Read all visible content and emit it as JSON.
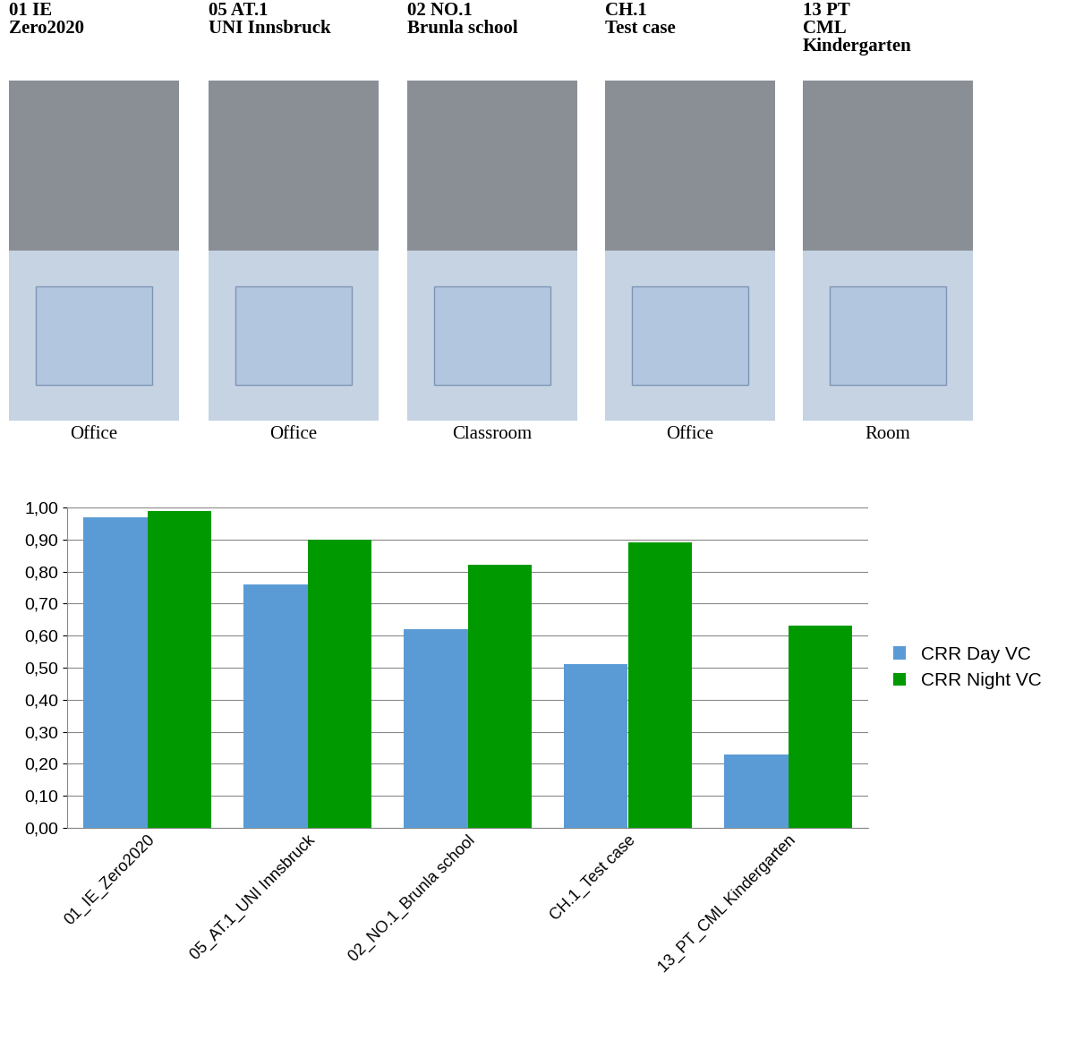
{
  "panels": [
    {
      "title_lines": [
        "01 IE",
        "Zero2020"
      ],
      "caption": "Office"
    },
    {
      "title_lines": [
        "05 AT.1",
        "UNI Innsbruck"
      ],
      "caption": "Office"
    },
    {
      "title_lines": [
        "02 NO.1",
        "Brunla school"
      ],
      "caption": "Classroom"
    },
    {
      "title_lines": [
        "CH.1",
        "Test case"
      ],
      "caption": "Office"
    },
    {
      "title_lines": [
        "13 PT",
        "CML",
        "Kindergarten"
      ],
      "caption": "Room"
    }
  ],
  "chart_data": {
    "type": "bar",
    "categories": [
      "01_IE_Zero2020",
      "05_AT.1_UNI Innsbruck",
      "02_NO.1_Brunla school",
      "CH.1_Test case",
      "13_PT_CML Kindergarten"
    ],
    "series": [
      {
        "name": "CRR Day VC",
        "color": "#5b9bd5",
        "values": [
          0.97,
          0.76,
          0.62,
          0.51,
          0.23
        ]
      },
      {
        "name": "CRR Night VC",
        "color": "#009a00",
        "values": [
          0.99,
          0.9,
          0.82,
          0.89,
          0.63
        ]
      }
    ],
    "ylim": [
      0,
      1
    ],
    "yticks": [
      {
        "value": 0,
        "label": "0,00"
      },
      {
        "value": 0.1,
        "label": "0,10"
      },
      {
        "value": 0.2,
        "label": "0,20"
      },
      {
        "value": 0.3,
        "label": "0,30"
      },
      {
        "value": 0.4,
        "label": "0,40"
      },
      {
        "value": 0.5,
        "label": "0,50"
      },
      {
        "value": 0.6,
        "label": "0,60"
      },
      {
        "value": 0.7,
        "label": "0,70"
      },
      {
        "value": 0.8,
        "label": "0,80"
      },
      {
        "value": 0.9,
        "label": "0,90"
      },
      {
        "value": 1,
        "label": "1,00"
      }
    ],
    "grid": true,
    "legend": "right"
  }
}
